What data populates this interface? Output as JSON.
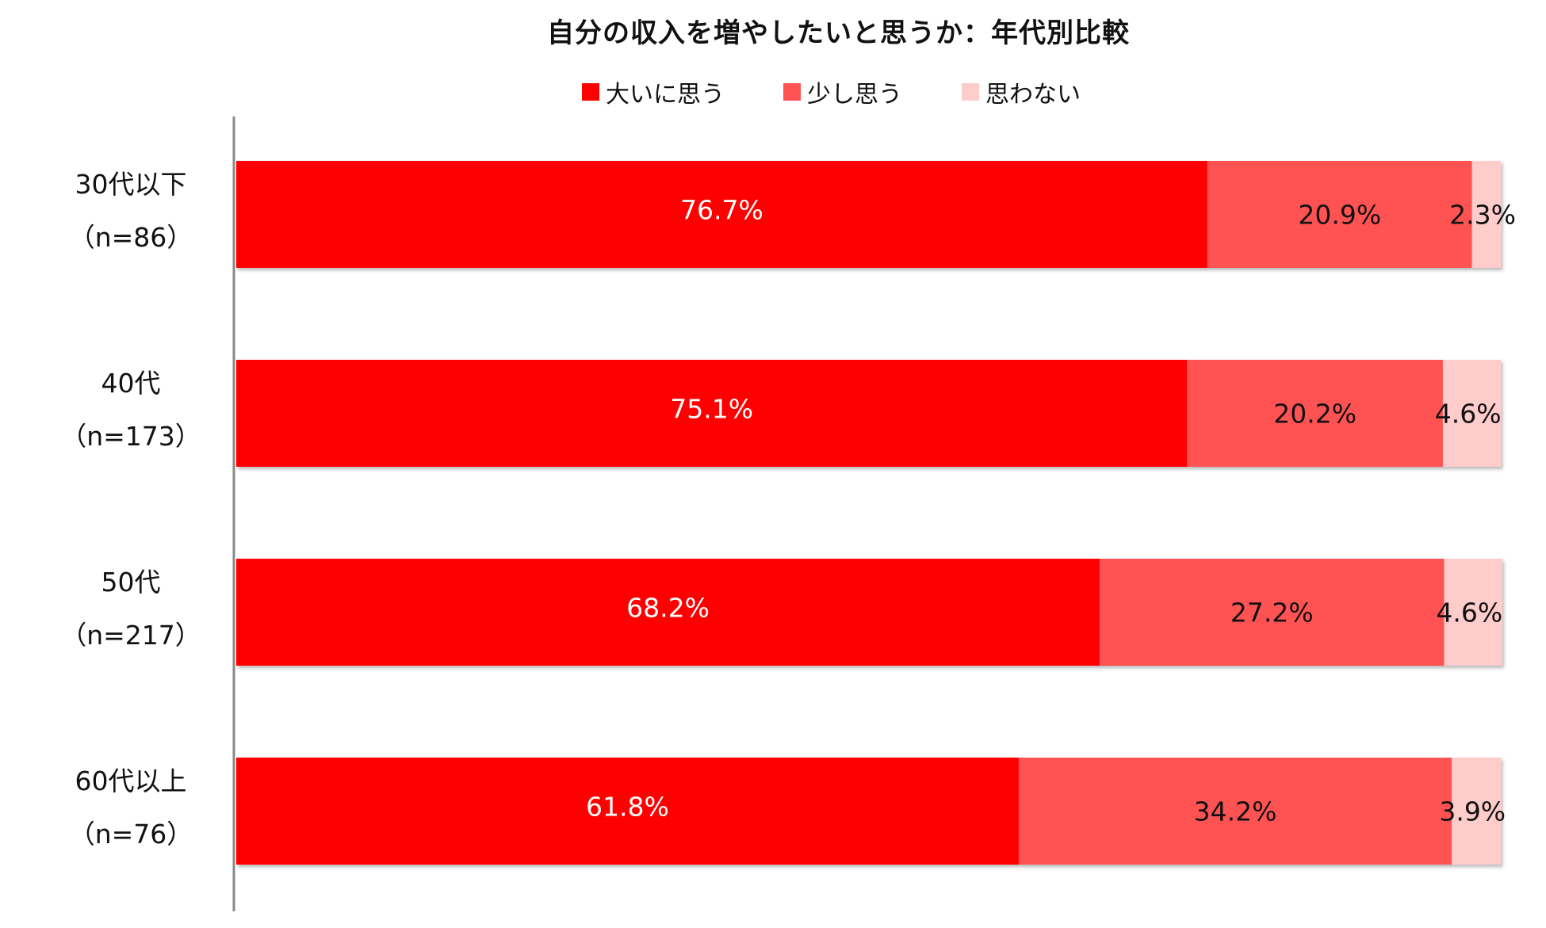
{
  "chart_data": {
    "type": "bar",
    "orientation": "horizontal",
    "stacked": true,
    "title": "自分の収入を増やしたいと思うか：年代別比較",
    "categories": [
      [
        "30代以下",
        "（n=86）"
      ],
      [
        "40代",
        "（n=173）"
      ],
      [
        "50代",
        "（n=217）"
      ],
      [
        "60代以上",
        "（n=76）"
      ]
    ],
    "series": [
      {
        "name": "大いに思う",
        "color": "#ff0000",
        "label_color": "#ffffff",
        "values": [
          76.7,
          75.1,
          68.2,
          61.8
        ],
        "labels": [
          "76.7%",
          "75.1%",
          "68.2%",
          "61.8%"
        ]
      },
      {
        "name": "少し思う",
        "color": "#ff5252",
        "label_color": "#111111",
        "values": [
          20.9,
          20.2,
          27.2,
          34.2
        ],
        "labels": [
          "20.9%",
          "20.2%",
          "27.2%",
          "34.2%"
        ]
      },
      {
        "name": "思わない",
        "color": "#ffcccc",
        "label_color": "#111111",
        "values": [
          2.3,
          4.6,
          4.6,
          3.9
        ],
        "labels": [
          "2.3%",
          "4.6%",
          "4.6%",
          "3.9%"
        ]
      }
    ],
    "xlim": [
      0,
      100
    ],
    "grid": false,
    "legend_position": "top"
  }
}
